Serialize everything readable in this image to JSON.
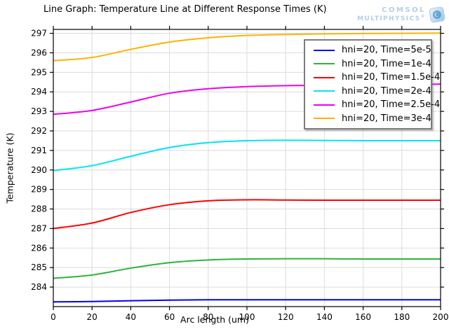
{
  "header": {
    "title": "Line Graph: Temperature Line at Different Response Times (K)",
    "logo": {
      "line1": "COMSOL",
      "line2": "MULTIPHYSICS",
      "registered": "®"
    }
  },
  "colors": {
    "grid": "#dcdcdc",
    "axis": "#000000",
    "legend_border": "#7c7c7c",
    "logo_blue": "#b3cfe7"
  },
  "chart_data": {
    "type": "line",
    "title": "Line Graph: Temperature Line at Different Response Times (K)",
    "xlabel": "Arc length (um)",
    "ylabel": "Temperature (K)",
    "xlim": [
      0,
      200
    ],
    "ylim": [
      283.0,
      297.2
    ],
    "x_ticks": [
      0,
      20,
      40,
      60,
      80,
      100,
      120,
      140,
      160,
      180,
      200
    ],
    "y_ticks": [
      284,
      285,
      286,
      287,
      288,
      289,
      290,
      291,
      292,
      293,
      294,
      295,
      296,
      297
    ],
    "grid": true,
    "legend_position": "top-right",
    "x": [
      0,
      20,
      40,
      60,
      80,
      100,
      120,
      140,
      160,
      180,
      200
    ],
    "series": [
      {
        "name": "hni=20, Time=5e-5",
        "color": "#0000ff",
        "values": [
          283.24,
          283.26,
          283.3,
          283.33,
          283.35,
          283.35,
          283.35,
          283.35,
          283.35,
          283.35,
          283.35
        ]
      },
      {
        "name": "hni=20, Time=1e-4",
        "color": "#2db33d",
        "values": [
          284.45,
          284.62,
          284.97,
          285.25,
          285.39,
          285.44,
          285.45,
          285.45,
          285.44,
          285.44,
          285.44
        ]
      },
      {
        "name": "hni=20, Time=1.5e-4",
        "color": "#ff0000",
        "values": [
          287.0,
          287.28,
          287.82,
          288.22,
          288.42,
          288.47,
          288.46,
          288.45,
          288.45,
          288.45,
          288.45
        ]
      },
      {
        "name": "hni=20, Time=2e-4",
        "color": "#00e5ee",
        "values": [
          289.97,
          290.22,
          290.7,
          291.15,
          291.4,
          291.5,
          291.52,
          291.51,
          291.5,
          291.5,
          291.5
        ]
      },
      {
        "name": "hni=20, Time=2.5e-4",
        "color": "#ee00ee",
        "values": [
          292.85,
          293.05,
          293.48,
          293.93,
          294.16,
          294.27,
          294.32,
          294.34,
          294.35,
          294.36,
          294.4
        ]
      },
      {
        "name": "hni=20, Time=3e-4",
        "color": "#ffb200",
        "values": [
          295.6,
          295.76,
          296.18,
          296.55,
          296.77,
          296.89,
          296.94,
          296.97,
          296.99,
          297.0,
          297.01
        ]
      }
    ]
  }
}
